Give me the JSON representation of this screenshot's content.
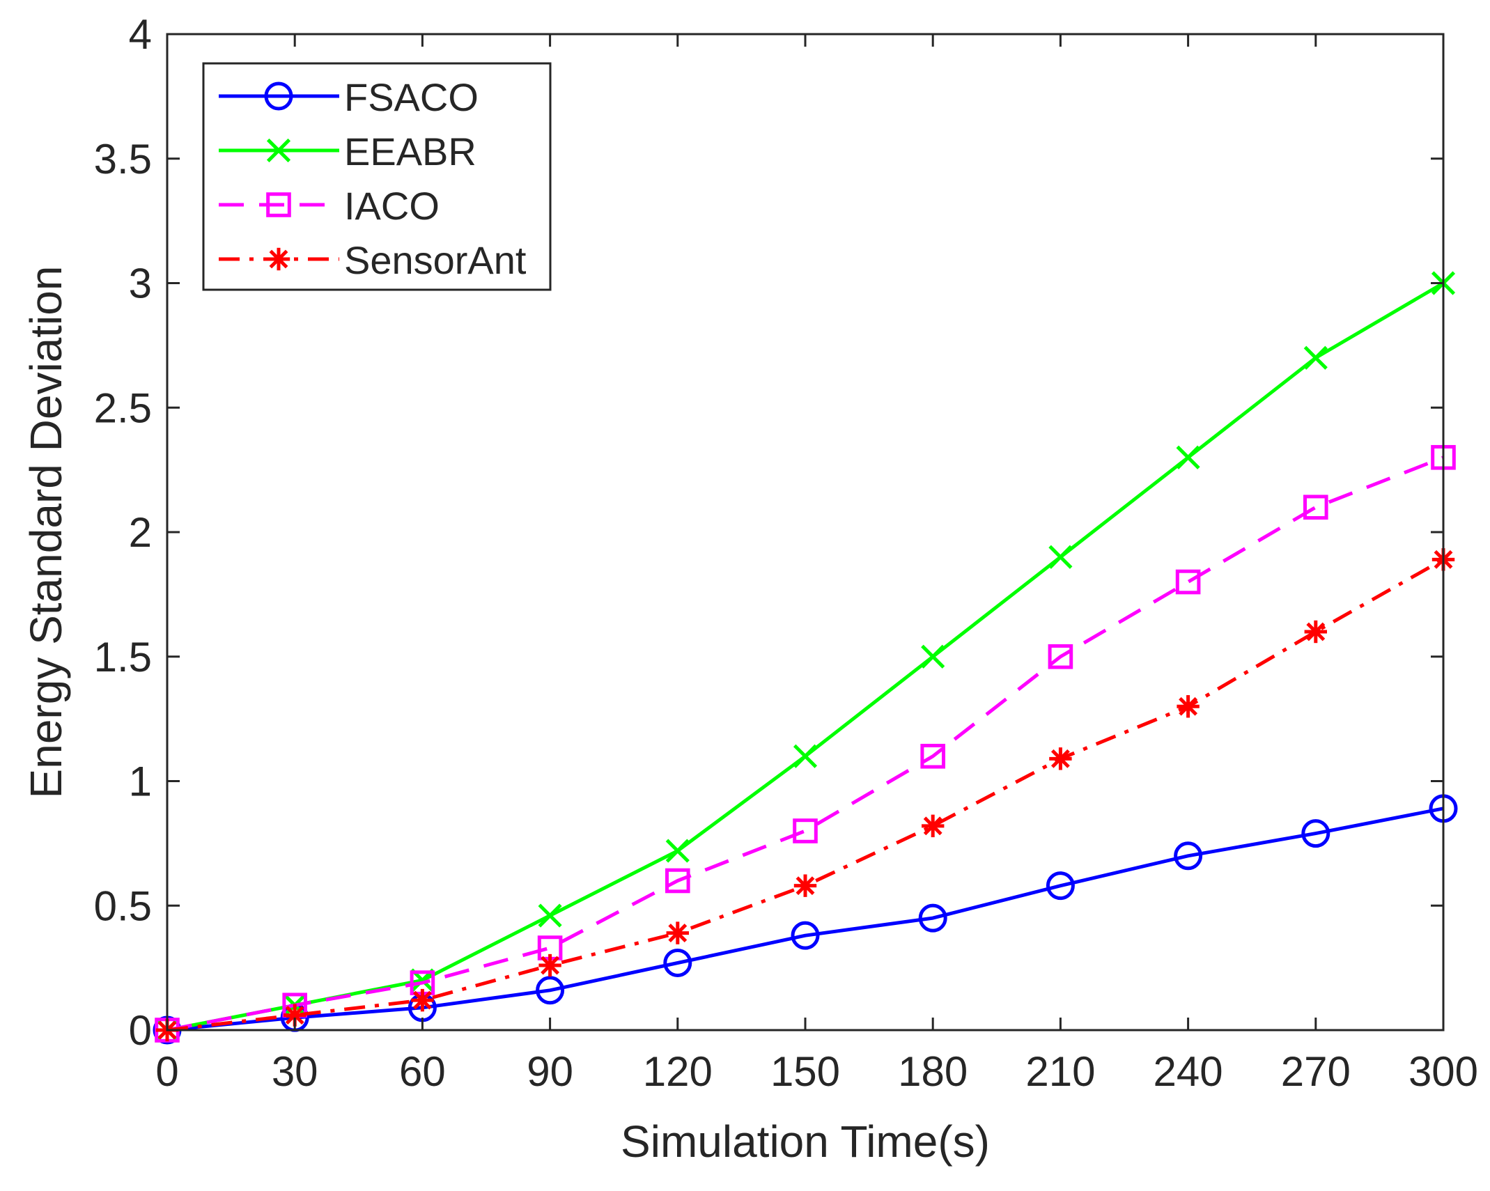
{
  "chart_data": {
    "type": "line",
    "title": "",
    "xlabel": "Simulation Time(s)",
    "ylabel": "Energy Standard Deviation",
    "xlim": [
      0,
      300
    ],
    "ylim": [
      0,
      4
    ],
    "x": [
      0,
      30,
      60,
      90,
      120,
      150,
      180,
      210,
      240,
      270,
      300
    ],
    "xticks": [
      "0",
      "30",
      "60",
      "90",
      "120",
      "150",
      "180",
      "210",
      "240",
      "270",
      "300"
    ],
    "yticks": [
      "0",
      "0.5",
      "1",
      "1.5",
      "2",
      "2.5",
      "3",
      "3.5",
      "4"
    ],
    "grid": false,
    "legend_position": "top-left",
    "series": [
      {
        "name": "FSACO",
        "color": "#0000ff",
        "dash": "solid",
        "marker": "circle",
        "values": [
          0.0,
          0.05,
          0.09,
          0.16,
          0.27,
          0.38,
          0.45,
          0.58,
          0.7,
          0.79,
          0.89
        ]
      },
      {
        "name": "EEABR",
        "color": "#00ff00",
        "dash": "solid",
        "marker": "x",
        "values": [
          0.0,
          0.1,
          0.2,
          0.46,
          0.72,
          1.1,
          1.5,
          1.9,
          2.3,
          2.7,
          3.0
        ]
      },
      {
        "name": "IACO",
        "color": "#ff00ff",
        "dash": "dashed",
        "marker": "square",
        "values": [
          0.0,
          0.1,
          0.19,
          0.33,
          0.6,
          0.8,
          1.1,
          1.5,
          1.8,
          2.1,
          2.3
        ]
      },
      {
        "name": "SensorAnt",
        "color": "#ff0000",
        "dash": "dashdot",
        "marker": "asterisk",
        "values": [
          0.0,
          0.06,
          0.12,
          0.26,
          0.39,
          0.58,
          0.82,
          1.09,
          1.3,
          1.6,
          1.89
        ]
      }
    ]
  }
}
